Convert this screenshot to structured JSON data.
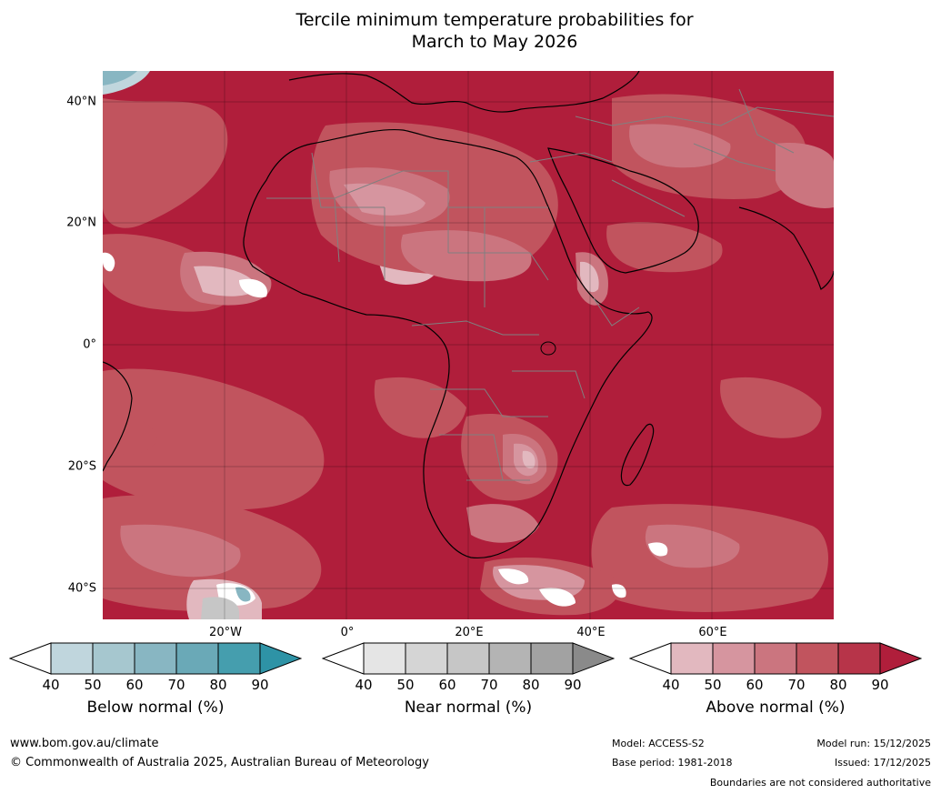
{
  "title": {
    "line1": "Tercile minimum temperature probabilities for",
    "line2": "March to May 2026"
  },
  "map": {
    "region": "Africa",
    "latitude_labels": [
      "40°N",
      "20°N",
      "0°",
      "20°S",
      "40°S"
    ],
    "longitude_labels": [
      "20°W",
      "0°",
      "20°E",
      "40°E",
      "60°E"
    ]
  },
  "colorbars": [
    {
      "name": "below",
      "label": "Below normal (%)",
      "ticks": [
        "40",
        "50",
        "60",
        "70",
        "80",
        "90"
      ],
      "colors": [
        "#c0d6dd",
        "#a6c7cf",
        "#88b6c2",
        "#6aa9b7",
        "#459eae"
      ],
      "over_color": "#2e93a6"
    },
    {
      "name": "near",
      "label": "Near normal (%)",
      "ticks": [
        "40",
        "50",
        "60",
        "70",
        "80",
        "90"
      ],
      "colors": [
        "#e5e5e5",
        "#d5d5d5",
        "#c6c6c6",
        "#b4b4b4",
        "#a2a2a2"
      ],
      "over_color": "#8a8a8a"
    },
    {
      "name": "above",
      "label": "Above normal (%)",
      "ticks": [
        "40",
        "50",
        "60",
        "70",
        "80",
        "90"
      ],
      "colors": [
        "#e2b8bf",
        "#d6959f",
        "#cb757f",
        "#c1545e",
        "#b73449"
      ],
      "over_color": "#b01e3b"
    }
  ],
  "footer": {
    "website": "www.bom.gov.au/climate",
    "copyright": "© Commonwealth of Australia 2025, Australian Bureau of Meteorology",
    "model": "Model: ACCESS-S2",
    "base_period": "Base period: 1981-2018",
    "model_run": "Model run: 15/12/2025",
    "issued": "Issued: 17/12/2025",
    "disclaimer": "Boundaries are not considered authoritative"
  }
}
